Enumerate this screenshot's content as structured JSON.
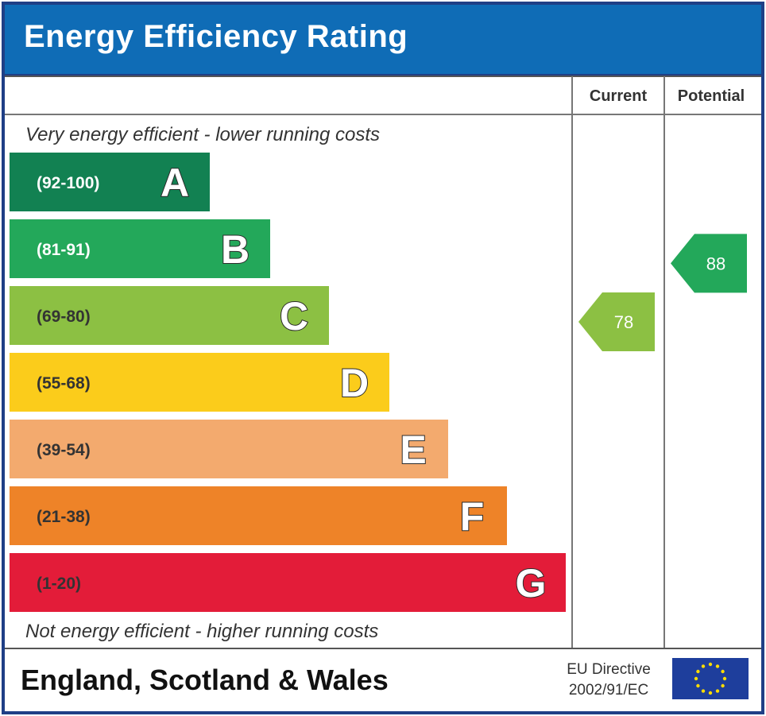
{
  "title": "Energy Efficiency Rating",
  "columns": {
    "current": "Current",
    "potential": "Potential"
  },
  "scale": {
    "top_label": "Very energy efficient - lower running costs",
    "bottom_label": "Not energy efficient - higher running costs"
  },
  "footer": {
    "region": "England, Scotland & Wales",
    "directive_line1": "EU Directive",
    "directive_line2": "2002/91/EC"
  },
  "chart_data": {
    "type": "bar",
    "title": "Energy Efficiency Rating",
    "categories": [
      "A",
      "B",
      "C",
      "D",
      "E",
      "F",
      "G"
    ],
    "ranges": [
      "(92-100)",
      "(81-91)",
      "(69-80)",
      "(55-68)",
      "(39-54)",
      "(21-38)",
      "(1-20)"
    ],
    "colors": [
      "#128152",
      "#23a85a",
      "#8cc043",
      "#fbcc1b",
      "#f3aa6e",
      "#ee8328",
      "#e31c39"
    ],
    "range_text_colors": [
      "#ffffff",
      "#ffffff",
      "#333333",
      "#333333",
      "#333333",
      "#333333",
      "#333333"
    ],
    "current": {
      "value": 78,
      "band": "C",
      "color": "#8cc043"
    },
    "potential": {
      "value": 88,
      "band": "B",
      "color": "#23a85a"
    }
  },
  "colors": {
    "header": "#0f6cb6",
    "border": "#1f3f86",
    "eu_flag": "#1e3e9c",
    "eu_stars": "#ffdd00"
  }
}
